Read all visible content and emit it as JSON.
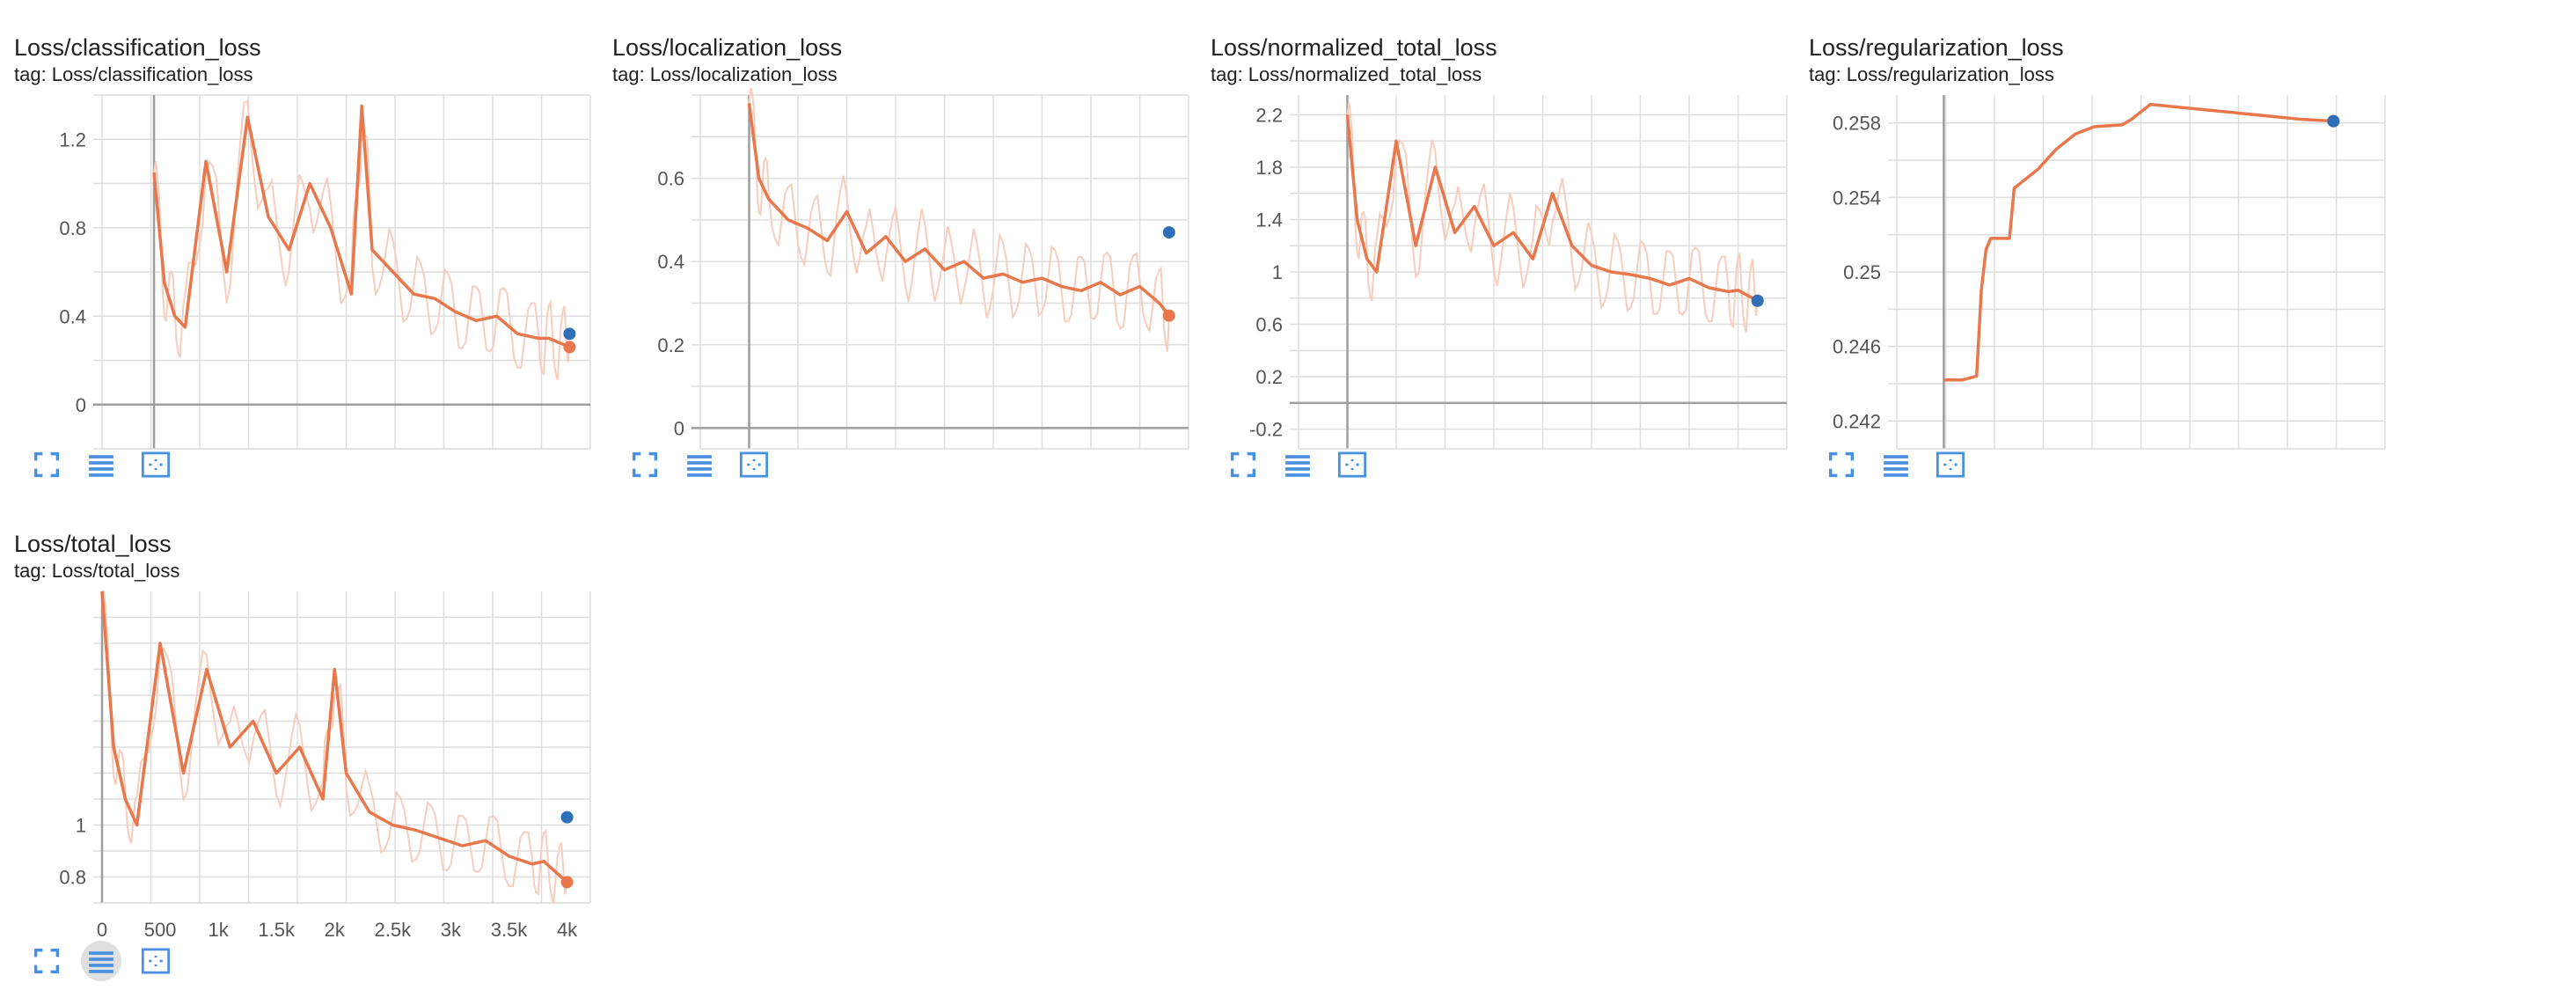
{
  "colors": {
    "series": "#e8774b",
    "series_raw": "#f7cdbd",
    "marker_last": "#e8774b",
    "marker_dot": "#2e6fb7",
    "grid": "#dedede",
    "axis": "#9e9e9e",
    "icon": "#4a90e2"
  },
  "toolbar_icons": [
    "fullscreen-icon",
    "data-table-icon",
    "fit-domain-icon"
  ],
  "charts": [
    {
      "title": "Loss/classification_loss",
      "tag": "tag: Loss/classification_loss"
    },
    {
      "title": "Loss/localization_loss",
      "tag": "tag: Loss/localization_loss"
    },
    {
      "title": "Loss/normalized_total_loss",
      "tag": "tag: Loss/normalized_total_loss"
    },
    {
      "title": "Loss/regularization_loss",
      "tag": "tag: Loss/regularization_loss"
    },
    {
      "title": "Loss/total_loss",
      "tag": "tag: Loss/total_loss"
    }
  ],
  "chart_data": [
    {
      "type": "line",
      "title": "Loss/classification_loss",
      "xlim": [
        -500,
        4200
      ],
      "ylim": [
        -0.2,
        1.4
      ],
      "yticks": [
        "1.2",
        "0.8",
        "0.4",
        "0"
      ],
      "ytick_values": [
        1.2,
        0.8,
        0.4,
        0
      ],
      "x": [
        0,
        100,
        200,
        300,
        500,
        700,
        900,
        1100,
        1300,
        1500,
        1700,
        1900,
        2000,
        2100,
        2300,
        2500,
        2700,
        2900,
        3100,
        3300,
        3500,
        3700,
        3800,
        3900,
        4000
      ],
      "y": [
        1.05,
        0.55,
        0.4,
        0.35,
        1.1,
        0.6,
        1.3,
        0.85,
        0.7,
        1.0,
        0.8,
        0.5,
        1.35,
        0.7,
        0.6,
        0.5,
        0.48,
        0.42,
        0.38,
        0.4,
        0.32,
        0.3,
        0.3,
        0.28,
        0.26
      ],
      "last_smoothed": 0.26,
      "last_raw": 0.32
    },
    {
      "type": "line",
      "title": "Loss/localization_loss",
      "xlim": [
        -500,
        4500
      ],
      "ylim": [
        -0.05,
        0.8
      ],
      "yticks": [
        "0.6",
        "0.4",
        "0.2",
        "0"
      ],
      "ytick_values": [
        0.6,
        0.4,
        0.2,
        0
      ],
      "x": [
        0,
        100,
        200,
        400,
        600,
        800,
        1000,
        1200,
        1400,
        1600,
        1800,
        2000,
        2200,
        2400,
        2600,
        2800,
        3000,
        3200,
        3400,
        3600,
        3800,
        4000,
        4200,
        4300
      ],
      "y": [
        0.78,
        0.6,
        0.55,
        0.5,
        0.48,
        0.45,
        0.52,
        0.42,
        0.46,
        0.4,
        0.43,
        0.38,
        0.4,
        0.36,
        0.37,
        0.35,
        0.36,
        0.34,
        0.33,
        0.35,
        0.32,
        0.34,
        0.3,
        0.27
      ],
      "last_smoothed": 0.27,
      "last_raw": 0.47
    },
    {
      "type": "line",
      "title": "Loss/normalized_total_loss",
      "xlim": [
        -500,
        4500
      ],
      "ylim": [
        -0.35,
        2.35
      ],
      "yticks": [
        "2.2",
        "1.8",
        "1.4",
        "1",
        "0.6",
        "0.2",
        "-0.2"
      ],
      "ytick_values": [
        2.2,
        1.8,
        1.4,
        1.0,
        0.6,
        0.2,
        -0.2
      ],
      "x": [
        0,
        100,
        200,
        300,
        500,
        700,
        900,
        1100,
        1300,
        1500,
        1700,
        1900,
        2100,
        2300,
        2500,
        2700,
        2900,
        3100,
        3300,
        3500,
        3700,
        3900,
        4000,
        4100,
        4200
      ],
      "y": [
        2.2,
        1.4,
        1.1,
        1.0,
        2.0,
        1.2,
        1.8,
        1.3,
        1.5,
        1.2,
        1.3,
        1.1,
        1.6,
        1.2,
        1.05,
        1.0,
        0.98,
        0.95,
        0.9,
        0.95,
        0.88,
        0.85,
        0.86,
        0.82,
        0.78
      ],
      "last_smoothed": 0.78,
      "last_raw": 0.78
    },
    {
      "type": "line",
      "title": "Loss/regularization_loss",
      "xlim": [
        -500,
        4700
      ],
      "ylim": [
        0.2405,
        0.2595
      ],
      "yticks": [
        "0.258",
        "0.254",
        "0.25",
        "0.246",
        "0.242"
      ],
      "ytick_values": [
        0.258,
        0.254,
        0.25,
        0.246,
        0.242
      ],
      "x": [
        0,
        200,
        350,
        400,
        450,
        500,
        700,
        750,
        1000,
        1200,
        1400,
        1600,
        1900,
        2000,
        2200,
        2600,
        3000,
        3400,
        3800,
        4150
      ],
      "y": [
        0.2442,
        0.2442,
        0.2444,
        0.249,
        0.2512,
        0.2518,
        0.2518,
        0.2545,
        0.2555,
        0.2566,
        0.2574,
        0.2578,
        0.2579,
        0.2582,
        0.259,
        0.2588,
        0.2586,
        0.2584,
        0.2582,
        0.2581
      ],
      "last_smoothed": 0.2581,
      "last_raw": 0.2581
    },
    {
      "type": "line",
      "title": "Loss/total_loss",
      "xlim": [
        0,
        4200
      ],
      "ylim": [
        0.7,
        1.9
      ],
      "xticks": [
        "0",
        "500",
        "1k",
        "1.5k",
        "2k",
        "2.5k",
        "3k",
        "3.5k",
        "4k"
      ],
      "xtick_values": [
        0,
        500,
        1000,
        1500,
        2000,
        2500,
        3000,
        3500,
        4000
      ],
      "yticks": [
        "1",
        "0.8"
      ],
      "ytick_values": [
        1.0,
        0.8
      ],
      "x": [
        0,
        100,
        200,
        300,
        500,
        700,
        900,
        1100,
        1300,
        1500,
        1700,
        1900,
        2000,
        2100,
        2300,
        2500,
        2700,
        2900,
        3100,
        3300,
        3500,
        3700,
        3800,
        3900,
        4000
      ],
      "y": [
        1.9,
        1.3,
        1.1,
        1.0,
        1.7,
        1.2,
        1.6,
        1.3,
        1.4,
        1.2,
        1.3,
        1.1,
        1.6,
        1.2,
        1.05,
        1.0,
        0.98,
        0.95,
        0.92,
        0.94,
        0.88,
        0.85,
        0.86,
        0.82,
        0.78
      ],
      "last_smoothed": 0.78,
      "last_raw": 1.03
    }
  ]
}
